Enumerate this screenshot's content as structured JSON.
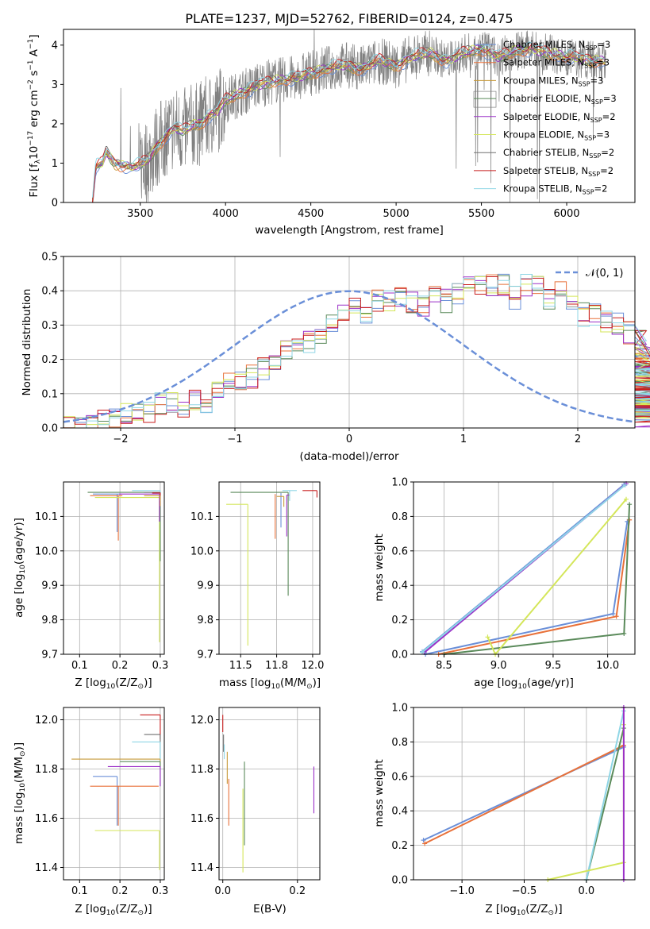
{
  "figure_title": "PLATE=1237, MJD=52762, FIBERID=0124, z=0.475",
  "colors": {
    "chabrier_miles": "#6a8fd8",
    "salpeter_miles": "#e8713a",
    "kroupa_miles": "#c79a3a",
    "chabrier_elodie": "#5a8a5a",
    "salpeter_elodie": "#9b30c8",
    "kroupa_elodie": "#d4e65a",
    "chabrier_stelib": "#707070",
    "salpeter_stelib": "#c81e1e",
    "kroupa_stelib": "#8fd6e6",
    "data": "#808080",
    "gauss": "#6a8fd8",
    "grid": "#b0b0b0"
  },
  "chart_data": [
    {
      "id": "spectrum",
      "type": "line",
      "title": "PLATE=1237, MJD=52762, FIBERID=0124, z=0.475",
      "xlabel": "wavelength [Angstrom, rest frame]",
      "ylabel": "Flux [f",
      "xlim": [
        3050,
        6400
      ],
      "ylim": [
        0,
        4.4
      ],
      "xticks": [
        "3500",
        "4000",
        "4500",
        "5000",
        "5500",
        "6000"
      ],
      "yticks": [
        "0",
        "1",
        "2",
        "3",
        "4"
      ],
      "legend": [
        "Chabrier MILES, N",
        "Salpeter MILES, N",
        "Kroupa MILES, N",
        "Chabrier ELODIE, N",
        "Salpeter ELODIE, N",
        "Kroupa ELODIE, N",
        "Chabrier STELIB, N",
        "Salpeter STELIB, N",
        "Kroupa STELIB, N"
      ],
      "legend_nssp": [
        "=3",
        "=3",
        "=3",
        "=3",
        "=2",
        "=3",
        "=2",
        "=2",
        "=2"
      ],
      "legend_placement": "top-right",
      "continuum_x": [
        3220,
        3240,
        3280,
        3300,
        3350,
        3400,
        3450,
        3500,
        3550,
        3600,
        3650,
        3700,
        3750,
        3800,
        3850,
        3900,
        3950,
        4000,
        4100,
        4200,
        4300,
        4400,
        4500,
        4600,
        4700,
        4800,
        4900,
        5000,
        5100,
        5200,
        5300,
        5400,
        5500,
        5600,
        5700,
        5800,
        5900,
        6000,
        6100,
        6200
      ],
      "continuum_y": [
        0.0,
        0.9,
        1.0,
        1.3,
        1.0,
        0.95,
        0.9,
        0.95,
        1.1,
        1.45,
        1.7,
        1.9,
        1.8,
        1.95,
        2.0,
        2.2,
        2.3,
        2.6,
        2.8,
        3.0,
        3.1,
        3.15,
        3.3,
        3.4,
        3.5,
        3.4,
        3.6,
        3.5,
        3.7,
        3.8,
        3.6,
        3.8,
        3.9,
        3.7,
        3.85,
        3.9,
        3.8,
        3.7,
        3.65,
        3.6
      ]
    },
    {
      "id": "residuals",
      "type": "bar",
      "xlabel": "(data-model)/error",
      "ylabel": "Normed distribution",
      "xlim": [
        -2.5,
        2.5
      ],
      "ylim": [
        0,
        0.5
      ],
      "xticks": [
        "−2",
        "−1",
        "0",
        "1",
        "2"
      ],
      "yticks": [
        "0.0",
        "0.1",
        "0.2",
        "0.3",
        "0.4",
        "0.5"
      ],
      "legend": [
        "𝒩(0, 1)"
      ],
      "legend_placement": "top-right",
      "bin_width": 0.1,
      "hist_base": [
        0.02,
        0.02,
        0.01,
        0.02,
        0.03,
        0.04,
        0.05,
        0.05,
        0.07,
        0.08,
        0.06,
        0.08,
        0.07,
        0.1,
        0.13,
        0.14,
        0.15,
        0.17,
        0.19,
        0.22,
        0.24,
        0.25,
        0.26,
        0.3,
        0.33,
        0.35,
        0.34,
        0.37,
        0.37,
        0.38,
        0.37,
        0.36,
        0.38,
        0.37,
        0.39,
        0.41,
        0.41,
        0.42,
        0.42,
        0.38,
        0.42,
        0.42,
        0.37,
        0.4,
        0.37,
        0.33,
        0.33,
        0.31,
        0.3,
        0.28,
        0.27,
        0.25,
        0.2,
        0.19,
        0.18,
        0.15,
        0.14,
        0.13,
        0.13,
        0.1,
        0.1,
        0.09,
        0.07,
        0.08,
        0.05,
        0.06,
        0.06,
        0.05,
        0.05,
        0.03,
        0.04
      ]
    },
    {
      "id": "age-vs-z",
      "type": "scatter",
      "xlabel": "Z [log",
      "ylabel": "age  [log",
      "xlim": [
        0.06,
        0.31
      ],
      "ylim": [
        9.7,
        10.2
      ],
      "xticks": [
        "0.1",
        "0.2",
        "0.3"
      ],
      "yticks": [
        "9.7",
        "9.8",
        "9.9",
        "10.0",
        "10.1"
      ],
      "points": [
        {
          "model": "chabrier_miles",
          "x": 0.193,
          "y": 10.165,
          "xerr": [
            0.06,
            0.01
          ],
          "yerr": [
            0.11,
            0.0
          ]
        },
        {
          "model": "salpeter_miles",
          "x": 0.196,
          "y": 10.16,
          "xerr": [
            0.07,
            0.01
          ],
          "yerr": [
            0.13,
            0.0
          ]
        },
        {
          "model": "kroupa_elodie",
          "x": 0.298,
          "y": 10.155,
          "xerr": [
            0.16,
            0.0
          ],
          "yerr": [
            0.42,
            0.0
          ]
        },
        {
          "model": "chabrier_elodie",
          "x": 0.3,
          "y": 10.17,
          "xerr": [
            0.18,
            0.0
          ],
          "yerr": [
            0.2,
            0.0
          ]
        },
        {
          "model": "salpeter_elodie",
          "x": 0.298,
          "y": 10.165,
          "xerr": [
            0.1,
            0.0
          ],
          "yerr": [
            0.08,
            0.0
          ]
        },
        {
          "model": "kroupa_stelib",
          "x": 0.3,
          "y": 10.175,
          "xerr": [
            0.07,
            0.0
          ],
          "yerr": [
            0.03,
            0.0
          ]
        },
        {
          "model": "chabrier_stelib",
          "x": 0.3,
          "y": 10.17,
          "xerr": [
            0.04,
            0.0
          ],
          "yerr": [
            0.02,
            0.0
          ]
        },
        {
          "model": "salpeter_stelib",
          "x": 0.3,
          "y": 10.168,
          "xerr": [
            0.02,
            0.0
          ],
          "yerr": [
            0.02,
            0.0
          ]
        },
        {
          "model": "kroupa_miles",
          "x": 0.3,
          "y": 10.16,
          "xerr": [
            0.04,
            0.0
          ],
          "yerr": [
            0.03,
            0.0
          ]
        }
      ]
    },
    {
      "id": "age-vs-mass",
      "type": "scatter",
      "xlabel": "mass [log",
      "ylabel": "",
      "xlim": [
        11.35,
        12.05
      ],
      "ylim": [
        9.7,
        10.2
      ],
      "xticks": [
        "11.5",
        "11.8",
        "12.0"
      ],
      "xtick_values": [
        11.5,
        11.75,
        12.0
      ],
      "yticks": [
        "9.7",
        "9.8",
        "9.9",
        "10.0",
        "10.1"
      ],
      "points": [
        {
          "model": "kroupa_elodie",
          "x": 11.55,
          "y": 10.135,
          "xerr": [
            0.15,
            0.0
          ],
          "yerr": [
            0.41,
            0.0
          ]
        },
        {
          "model": "salpeter_miles",
          "x": 11.74,
          "y": 10.165,
          "xerr": [
            0.0,
            0.0
          ],
          "yerr": [
            0.13,
            0.0
          ]
        },
        {
          "model": "chabrier_miles",
          "x": 11.78,
          "y": 10.168,
          "xerr": [
            0.0,
            0.0
          ],
          "yerr": [
            0.1,
            0.0
          ]
        },
        {
          "model": "chabrier_elodie",
          "x": 11.83,
          "y": 10.17,
          "xerr": [
            0.4,
            0.0
          ],
          "yerr": [
            0.3,
            0.0
          ]
        },
        {
          "model": "salpeter_elodie",
          "x": 11.82,
          "y": 10.162,
          "xerr": [
            0.0,
            0.02
          ],
          "yerr": [
            0.12,
            0.0
          ]
        },
        {
          "model": "kroupa_stelib",
          "x": 11.84,
          "y": 10.175,
          "xerr": [
            0.05,
            0.05
          ],
          "yerr": [
            0.03,
            0.0
          ]
        },
        {
          "model": "salpeter_stelib",
          "x": 12.03,
          "y": 10.175,
          "xerr": [
            0.1,
            0.0
          ],
          "yerr": [
            0.02,
            0.0
          ]
        },
        {
          "model": "kroupa_miles",
          "x": 11.8,
          "y": 10.158,
          "xerr": [
            0.05,
            0.0
          ],
          "yerr": [
            0.03,
            0.0
          ]
        }
      ]
    },
    {
      "id": "weight-vs-age",
      "type": "line",
      "xlabel": "age  [log",
      "ylabel": "mass weight",
      "xlim": [
        8.22,
        10.25
      ],
      "ylim": [
        0,
        1
      ],
      "xticks": [
        "8.5",
        "9.0",
        "9.5",
        "10.0"
      ],
      "yticks": [
        "0.0",
        "0.2",
        "0.4",
        "0.6",
        "0.8",
        "1.0"
      ],
      "series": [
        {
          "model": "chabrier_miles",
          "x": [
            8.3,
            10.15
          ],
          "y": [
            0.015,
            0.985
          ]
        },
        {
          "model": "salpeter_elodie",
          "x": [
            8.32,
            10.17
          ],
          "y": [
            0.01,
            0.99
          ]
        },
        {
          "model": "kroupa_stelib",
          "x": [
            8.3,
            10.16
          ],
          "y": [
            0.012,
            0.982
          ]
        },
        {
          "model": "chabrier_miles",
          "x": [
            8.33,
            10.05,
            10.18
          ],
          "y": [
            0.0,
            0.235,
            0.77
          ]
        },
        {
          "model": "salpeter_miles",
          "x": [
            8.45,
            10.08,
            10.2
          ],
          "y": [
            0.0,
            0.22,
            0.78
          ]
        },
        {
          "model": "chabrier_elodie",
          "x": [
            8.5,
            10.15,
            10.2
          ],
          "y": [
            0.0,
            0.12,
            0.87
          ]
        },
        {
          "model": "kroupa_elodie",
          "x": [
            8.9,
            8.97,
            10.17
          ],
          "y": [
            0.1,
            0.0,
            0.9
          ]
        }
      ]
    },
    {
      "id": "mass-vs-z",
      "type": "scatter",
      "xlabel": "Z [log",
      "ylabel": "mass [log",
      "xlim": [
        0.06,
        0.31
      ],
      "ylim": [
        11.35,
        12.05
      ],
      "xticks": [
        "0.1",
        "0.2",
        "0.3"
      ],
      "yticks": [
        "11.4",
        "11.6",
        "11.8",
        "12.0"
      ],
      "points": [
        {
          "model": "salpeter_stelib",
          "x": 0.3,
          "y": 12.02,
          "xerr": [
            0.05,
            0.0
          ],
          "yerr": [
            0.1,
            0.0
          ]
        },
        {
          "model": "chabrier_stelib",
          "x": 0.3,
          "y": 11.94,
          "xerr": [
            0.04,
            0.0
          ],
          "yerr": [
            0.1,
            0.0
          ]
        },
        {
          "model": "kroupa_stelib",
          "x": 0.3,
          "y": 11.91,
          "xerr": [
            0.07,
            0.0
          ],
          "yerr": [
            0.1,
            0.0
          ]
        },
        {
          "model": "kroupa_miles",
          "x": 0.3,
          "y": 11.84,
          "xerr": [
            0.22,
            0.0
          ],
          "yerr": [
            0.03,
            0.0
          ]
        },
        {
          "model": "chabrier_elodie",
          "x": 0.3,
          "y": 11.83,
          "xerr": [
            0.1,
            0.0
          ],
          "yerr": [
            0.1,
            0.0
          ]
        },
        {
          "model": "salpeter_elodie",
          "x": 0.3,
          "y": 11.81,
          "xerr": [
            0.13,
            0.0
          ],
          "yerr": [
            0.08,
            0.0
          ]
        },
        {
          "model": "chabrier_miles",
          "x": 0.193,
          "y": 11.77,
          "xerr": [
            0.06,
            0.0
          ],
          "yerr": [
            0.2,
            0.0
          ]
        },
        {
          "model": "salpeter_miles",
          "x": 0.196,
          "y": 11.73,
          "xerr": [
            0.07,
            0.1
          ],
          "yerr": [
            0.16,
            0.0
          ]
        },
        {
          "model": "kroupa_elodie",
          "x": 0.298,
          "y": 11.55,
          "xerr": [
            0.16,
            0.0
          ],
          "yerr": [
            0.16,
            0.0
          ]
        }
      ]
    },
    {
      "id": "mass-vs-ebv",
      "type": "scatter",
      "xlabel": "E(B-V)",
      "ylabel": "",
      "xlim": [
        -0.01,
        0.26
      ],
      "ylim": [
        11.35,
        12.05
      ],
      "xticks": [
        "0.0",
        "0.2"
      ],
      "yticks": [
        "11.4",
        "11.6",
        "11.8",
        "12.0"
      ],
      "points": [
        {
          "model": "salpeter_stelib",
          "x": 0.0,
          "y": 12.02,
          "yerr": [
            0.07,
            0.0
          ]
        },
        {
          "model": "chabrier_stelib",
          "x": 0.002,
          "y": 11.94,
          "yerr": [
            0.07,
            0.0
          ]
        },
        {
          "model": "kroupa_stelib",
          "x": 0.004,
          "y": 11.9,
          "yerr": [
            0.06,
            0.0
          ]
        },
        {
          "model": "kroupa_miles",
          "x": 0.012,
          "y": 11.87,
          "yerr": [
            0.13,
            0.0
          ]
        },
        {
          "model": "salpeter_miles",
          "x": 0.016,
          "y": 11.76,
          "yerr": [
            0.19,
            0.0
          ]
        },
        {
          "model": "chabrier_elodie",
          "x": 0.058,
          "y": 11.83,
          "yerr": [
            0.34,
            0.0
          ]
        },
        {
          "model": "kroupa_elodie",
          "x": 0.054,
          "y": 11.72,
          "yerr": [
            0.34,
            0.0
          ]
        },
        {
          "model": "salpeter_elodie",
          "x": 0.244,
          "y": 11.81,
          "yerr": [
            0.19,
            0.0
          ]
        }
      ]
    },
    {
      "id": "weight-vs-z",
      "type": "line",
      "xlabel": "Z [log",
      "ylabel": "mass weight",
      "xlim": [
        -1.39,
        0.39
      ],
      "ylim": [
        0,
        1
      ],
      "xticks": [
        "−1.0",
        "−0.5",
        "0.0"
      ],
      "yticks": [
        "0.0",
        "0.2",
        "0.4",
        "0.6",
        "0.8",
        "1.0"
      ],
      "series": [
        {
          "model": "chabrier_miles",
          "x": [
            -1.31,
            0.3
          ],
          "y": [
            0.23,
            0.77
          ]
        },
        {
          "model": "salpeter_miles",
          "x": [
            -1.3,
            0.3
          ],
          "y": [
            0.21,
            0.78
          ]
        },
        {
          "model": "chabrier_elodie",
          "x": [
            0.0,
            0.3
          ],
          "y": [
            0.0,
            0.88
          ]
        },
        {
          "model": "kroupa_stelib",
          "x": [
            0.0,
            0.3
          ],
          "y": [
            0.0,
            0.98
          ]
        },
        {
          "model": "kroupa_elodie",
          "x": [
            -0.31,
            0.3,
            0.3
          ],
          "y": [
            0.0,
            0.1,
            0.9
          ]
        },
        {
          "model": "salpeter_elodie",
          "x": [
            0.3,
            0.3
          ],
          "y": [
            0.0,
            1.0
          ]
        }
      ]
    }
  ]
}
